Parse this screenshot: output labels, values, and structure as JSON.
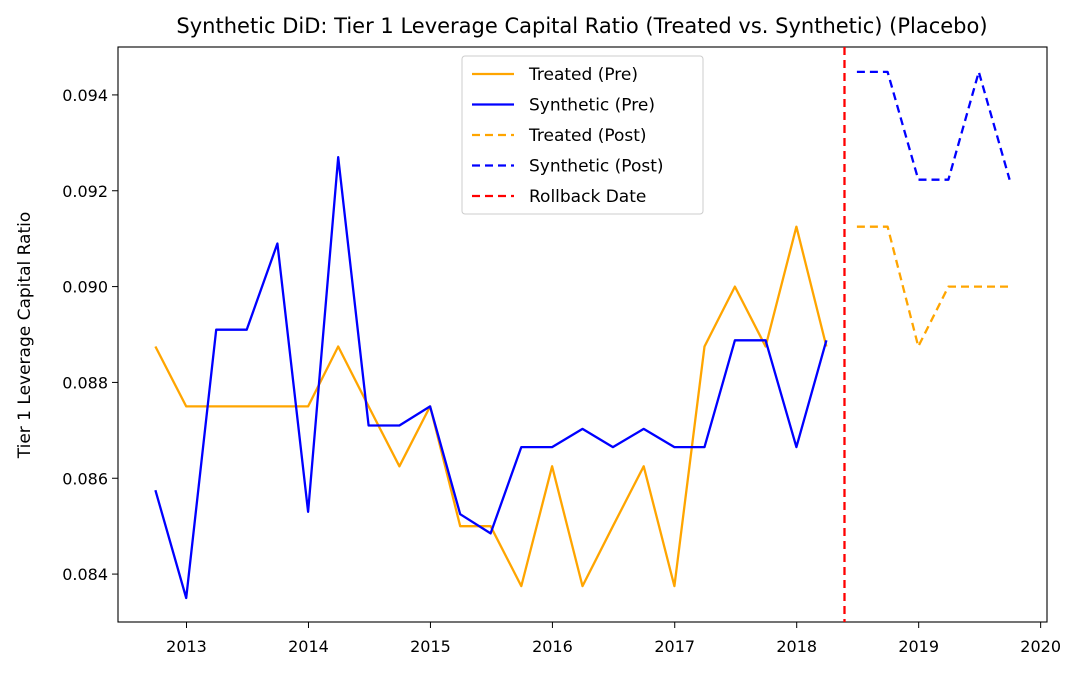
{
  "chart_data": {
    "type": "line",
    "title": "Synthetic DiD: Tier 1 Leverage Capital Ratio (Treated vs. Synthetic) (Placebo)",
    "xlabel": "",
    "ylabel": "Tier 1 Leverage Capital Ratio",
    "xlim": [
      "2012-06-10",
      "2020-01-20"
    ],
    "ylim": [
      0.083,
      0.095
    ],
    "x_ticks": [
      "2013",
      "2014",
      "2015",
      "2016",
      "2017",
      "2018",
      "2019",
      "2020"
    ],
    "y_ticks": [
      "0.084",
      "0.086",
      "0.088",
      "0.090",
      "0.092",
      "0.094"
    ],
    "grid": false,
    "legend_position": "top-center",
    "vline": {
      "name": "Rollback Date",
      "x": "2018-05-24",
      "color": "#ff0000"
    },
    "series": [
      {
        "name": "Treated (Pre)",
        "color": "#ffa500",
        "dash": false,
        "x": [
          "2012-09-30",
          "2012-12-31",
          "2013-03-31",
          "2013-06-30",
          "2013-09-30",
          "2013-12-31",
          "2014-03-31",
          "2014-06-30",
          "2014-09-30",
          "2014-12-31",
          "2015-03-31",
          "2015-06-30",
          "2015-09-30",
          "2015-12-31",
          "2016-03-31",
          "2016-06-30",
          "2016-09-30",
          "2016-12-31",
          "2017-03-31",
          "2017-06-30",
          "2017-09-30",
          "2017-12-31",
          "2018-03-31"
        ],
        "y": [
          0.08875,
          0.0875,
          0.0875,
          0.0875,
          0.0875,
          0.0875,
          0.08875,
          0.0875,
          0.08625,
          0.0875,
          0.085,
          0.085,
          0.08375,
          0.08625,
          0.08375,
          0.085,
          0.08625,
          0.08375,
          0.08875,
          0.09,
          0.08875,
          0.09125,
          0.08875
        ]
      },
      {
        "name": "Synthetic (Pre)",
        "color": "#0000ff",
        "dash": false,
        "x": [
          "2012-09-30",
          "2012-12-31",
          "2013-03-31",
          "2013-06-30",
          "2013-09-30",
          "2013-12-31",
          "2014-03-31",
          "2014-06-30",
          "2014-09-30",
          "2014-12-31",
          "2015-03-31",
          "2015-06-30",
          "2015-09-30",
          "2015-12-31",
          "2016-03-31",
          "2016-06-30",
          "2016-09-30",
          "2016-12-31",
          "2017-03-31",
          "2017-06-30",
          "2017-09-30",
          "2017-12-31",
          "2018-03-31"
        ],
        "y": [
          0.08575,
          0.0835,
          0.0891,
          0.0891,
          0.0909,
          0.0853,
          0.0927,
          0.0871,
          0.0871,
          0.0875,
          0.08525,
          0.08485,
          0.08665,
          0.08665,
          0.08703,
          0.08665,
          0.08703,
          0.08665,
          0.08665,
          0.08888,
          0.08888,
          0.08665,
          0.08888
        ]
      },
      {
        "name": "Treated (Post)",
        "color": "#ffa500",
        "dash": true,
        "x": [
          "2018-06-30",
          "2018-09-30",
          "2018-12-31",
          "2019-03-31",
          "2019-06-30",
          "2019-09-30"
        ],
        "y": [
          0.09125,
          0.09125,
          0.08875,
          0.09,
          0.09,
          0.09
        ]
      },
      {
        "name": "Synthetic (Post)",
        "color": "#0000ff",
        "dash": true,
        "x": [
          "2018-06-30",
          "2018-09-30",
          "2018-12-31",
          "2019-03-31",
          "2019-06-30",
          "2019-09-30"
        ],
        "y": [
          0.09448,
          0.09448,
          0.09223,
          0.09223,
          0.09448,
          0.09223
        ]
      }
    ]
  }
}
